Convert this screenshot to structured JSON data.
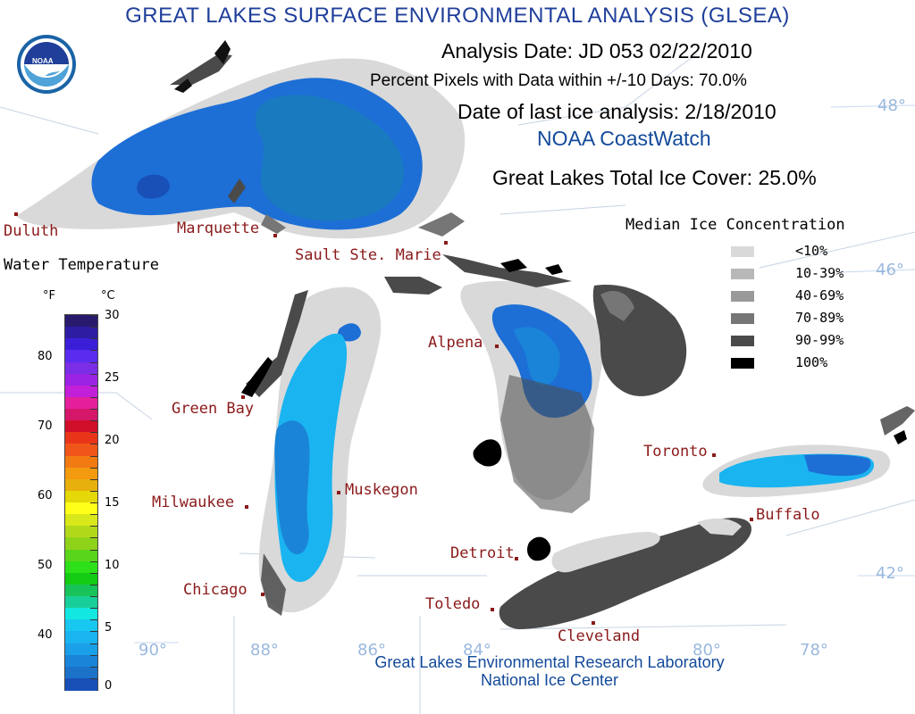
{
  "header": {
    "title": "GREAT LAKES SURFACE ENVIRONMENTAL ANALYSIS (GLSEA)",
    "analysis_date": "Analysis Date:  JD 053 02/22/2010",
    "percent_pixels": "Percent Pixels with Data within +/-10 Days:  70.0%",
    "last_ice_analysis": "Date of last ice analysis: 2/18/2010",
    "source": "NOAA CoastWatch",
    "total_ice_cover": "Great Lakes Total Ice Cover:  25.0%"
  },
  "logo": {
    "text": "NOAA"
  },
  "colors": {
    "title": "#1f3f9a",
    "city_label": "#8b1a1a",
    "graticule": "#9ab8de",
    "water_0_2C": "#1d6fd6",
    "water_2_4C": "#1ab4f0"
  },
  "cities": [
    {
      "name": "Duluth"
    },
    {
      "name": "Marquette"
    },
    {
      "name": "Sault Ste. Marie"
    },
    {
      "name": "Alpena"
    },
    {
      "name": "Green Bay"
    },
    {
      "name": "Toronto"
    },
    {
      "name": "Muskegon"
    },
    {
      "name": "Milwaukee"
    },
    {
      "name": "Buffalo"
    },
    {
      "name": "Detroit"
    },
    {
      "name": "Chicago"
    },
    {
      "name": "Toledo"
    },
    {
      "name": "Cleveland"
    }
  ],
  "graticule": {
    "lat_labels": [
      "48°",
      "46°",
      "42°"
    ],
    "lon_labels": [
      "90°",
      "88°",
      "86°",
      "84°",
      "80°",
      "78°"
    ]
  },
  "water_temperature_legend": {
    "title": "Water Temperature",
    "unit_f": "°F",
    "unit_c": "°C",
    "f_ticks": [
      "80",
      "70",
      "60",
      "50",
      "40"
    ],
    "c_ticks": [
      "30",
      "25",
      "20",
      "15",
      "10",
      "5",
      "0"
    ],
    "colors": [
      "#2a1a6e",
      "#2d1da3",
      "#3b1fd8",
      "#5a2cf0",
      "#7a2ee6",
      "#9b23e3",
      "#c21fd9",
      "#e51f9c",
      "#d5176a",
      "#d20f2a",
      "#e8351a",
      "#f0561a",
      "#f27a12",
      "#f39a0f",
      "#e8b00c",
      "#e5d808",
      "#ffff1a",
      "#d8e81a",
      "#b2d81a",
      "#8fd21a",
      "#5ad61a",
      "#2de01a",
      "#14cc14",
      "#18c45a",
      "#19cf99",
      "#12e8e0",
      "#18c8f0",
      "#1ab4f0",
      "#1aa0e8",
      "#1a84d8",
      "#1c72c8",
      "#1850b8"
    ]
  },
  "ice_legend": {
    "title": "Median Ice Concentration",
    "items": [
      {
        "label": "<10%",
        "color": "#d9d9d9"
      },
      {
        "label": "10-39%",
        "color": "#b8b8b8"
      },
      {
        "label": "40-69%",
        "color": "#999999"
      },
      {
        "label": "70-89%",
        "color": "#767676"
      },
      {
        "label": "90-99%",
        "color": "#4a4a4a"
      },
      {
        "label": "100%",
        "color": "#000000"
      }
    ]
  },
  "footer": {
    "line1": "Great Lakes Environmental Research Laboratory",
    "line2": "National Ice Center"
  }
}
